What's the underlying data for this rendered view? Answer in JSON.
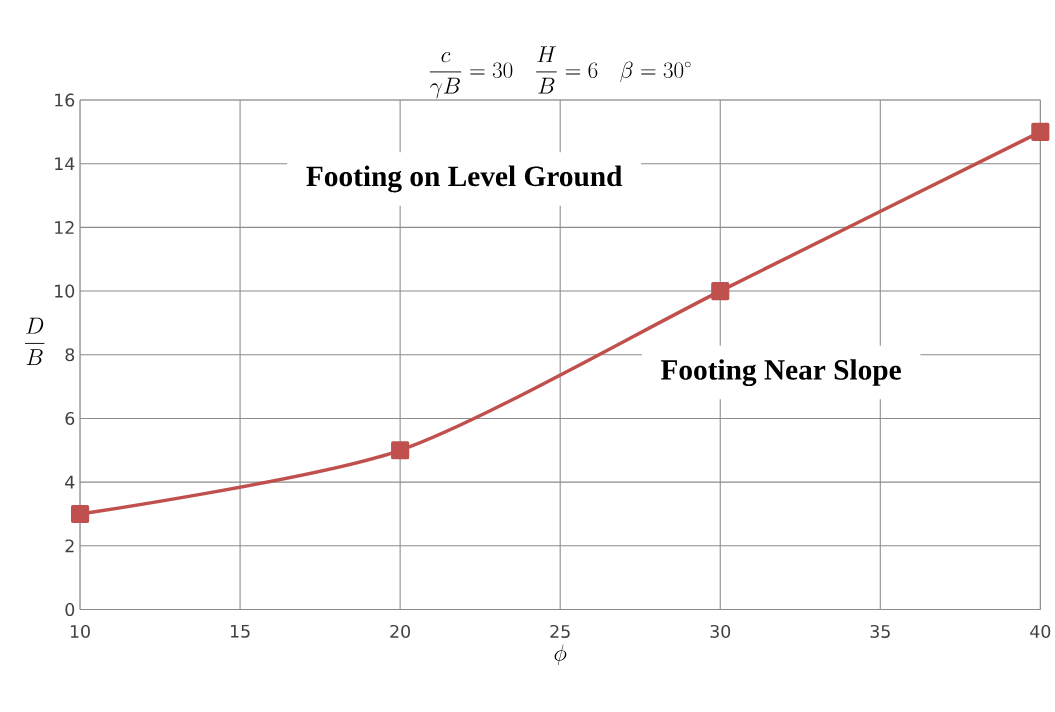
{
  "chart_data": {
    "type": "line",
    "title": "\\frac{c}{\\gamma B} = 30 \\quad \\frac{H}{B} = 6 \\quad \\beta = 30^\\circ",
    "xlabel": "\\phi",
    "ylabel": "\\frac{D}{B}",
    "x": [
      10,
      20,
      30,
      40
    ],
    "series": [
      {
        "color": "#c0504d",
        "values": [
          3,
          5,
          10,
          15
        ]
      }
    ],
    "xlim": [
      10,
      40
    ],
    "ylim": [
      0,
      16
    ],
    "xticks": [
      10,
      15,
      20,
      25,
      30,
      35,
      40
    ],
    "yticks": [
      0,
      2,
      4,
      6,
      8,
      10,
      12,
      14,
      16
    ],
    "grid": true,
    "marker": "square",
    "line_style": "solid",
    "annotations": [
      "Footing on Level Ground",
      "Footing Near Slope"
    ]
  }
}
